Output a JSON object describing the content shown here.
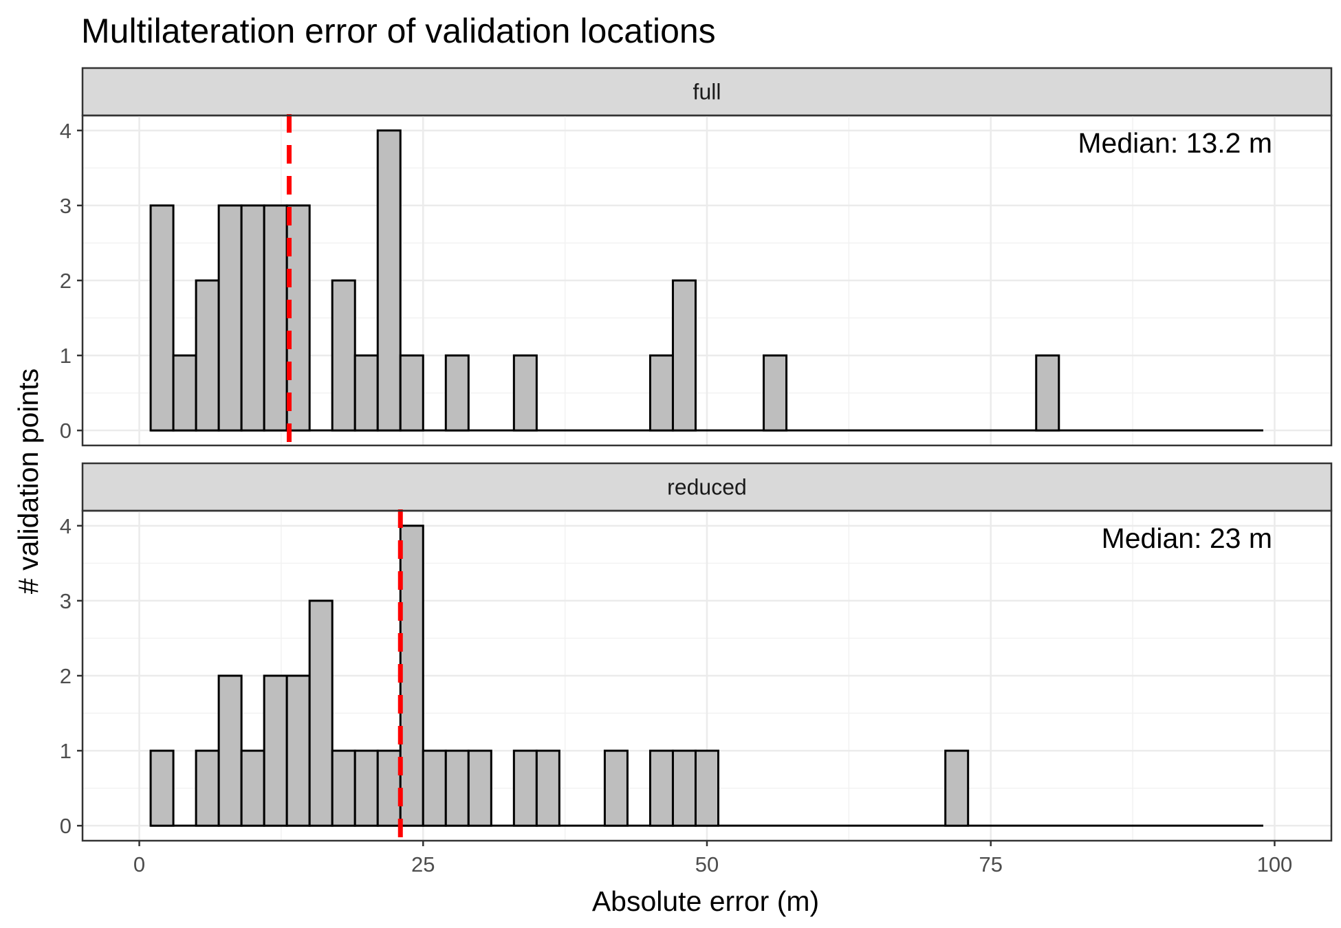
{
  "chart_data": {
    "type": "bar",
    "title": "Multilateration error of validation locations",
    "xlabel": "Absolute error (m)",
    "ylabel": "# validation points",
    "xlim": [
      -5,
      105
    ],
    "ylim": [
      -0.2,
      4.2
    ],
    "x_ticks": [
      0,
      25,
      50,
      75,
      100
    ],
    "y_ticks": [
      0,
      1,
      2,
      3,
      4
    ],
    "grid": true,
    "bin_width": 2,
    "bin_range": [
      1,
      99
    ],
    "bar_fill": "#bebebe",
    "median_line_color": "#ff0000",
    "panels": [
      {
        "label": "full",
        "median": 13.2,
        "annotation": "Median: 13.2 m",
        "bins": [
          {
            "x": 2,
            "count": 3
          },
          {
            "x": 4,
            "count": 1
          },
          {
            "x": 6,
            "count": 2
          },
          {
            "x": 8,
            "count": 3
          },
          {
            "x": 10,
            "count": 3
          },
          {
            "x": 12,
            "count": 3
          },
          {
            "x": 14,
            "count": 3
          },
          {
            "x": 18,
            "count": 2
          },
          {
            "x": 20,
            "count": 1
          },
          {
            "x": 22,
            "count": 4
          },
          {
            "x": 24,
            "count": 1
          },
          {
            "x": 28,
            "count": 1
          },
          {
            "x": 34,
            "count": 1
          },
          {
            "x": 46,
            "count": 1
          },
          {
            "x": 48,
            "count": 2
          },
          {
            "x": 56,
            "count": 1
          },
          {
            "x": 80,
            "count": 1
          }
        ]
      },
      {
        "label": "reduced",
        "median": 23,
        "annotation": "Median: 23 m",
        "bins": [
          {
            "x": 2,
            "count": 1
          },
          {
            "x": 6,
            "count": 1
          },
          {
            "x": 8,
            "count": 2
          },
          {
            "x": 10,
            "count": 1
          },
          {
            "x": 12,
            "count": 2
          },
          {
            "x": 14,
            "count": 2
          },
          {
            "x": 16,
            "count": 3
          },
          {
            "x": 18,
            "count": 1
          },
          {
            "x": 20,
            "count": 1
          },
          {
            "x": 22,
            "count": 1
          },
          {
            "x": 24,
            "count": 4
          },
          {
            "x": 26,
            "count": 1
          },
          {
            "x": 28,
            "count": 1
          },
          {
            "x": 30,
            "count": 1
          },
          {
            "x": 34,
            "count": 1
          },
          {
            "x": 36,
            "count": 1
          },
          {
            "x": 42,
            "count": 1
          },
          {
            "x": 46,
            "count": 1
          },
          {
            "x": 48,
            "count": 1
          },
          {
            "x": 50,
            "count": 1
          },
          {
            "x": 72,
            "count": 1
          }
        ]
      }
    ]
  }
}
